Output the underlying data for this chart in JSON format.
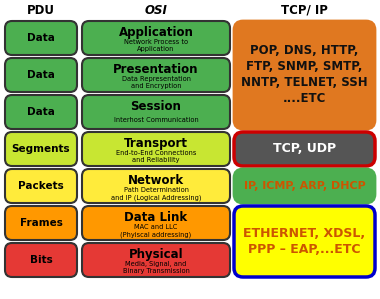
{
  "title_pdu": "PDU",
  "title_osi": "OSI",
  "title_tcp": "TCP/ IP",
  "layers": [
    {
      "pdu": "Data",
      "osi_name": "Application",
      "osi_sub": "Network Process to\nApplication",
      "pdu_color": "#4caf50",
      "osi_color": "#4caf50"
    },
    {
      "pdu": "Data",
      "osi_name": "Presentation",
      "osi_sub": "Data Representation\nand Encryption",
      "pdu_color": "#4caf50",
      "osi_color": "#4caf50"
    },
    {
      "pdu": "Data",
      "osi_name": "Session",
      "osi_sub": "Interhost Communication",
      "pdu_color": "#4caf50",
      "osi_color": "#4caf50"
    },
    {
      "pdu": "Segments",
      "osi_name": "Transport",
      "osi_sub": "End-to-End Connections\nand Reliability",
      "pdu_color": "#c8e632",
      "osi_color": "#c8e632"
    },
    {
      "pdu": "Packets",
      "osi_name": "Network",
      "osi_sub": "Path Determination\nand IP (Logical Addressing)",
      "pdu_color": "#ffeb3b",
      "osi_color": "#ffeb3b"
    },
    {
      "pdu": "Frames",
      "osi_name": "Data Link",
      "osi_sub": "MAC and LLC\n(Phyiscal addressing)",
      "pdu_color": "#ff9800",
      "osi_color": "#ff9800"
    },
    {
      "pdu": "Bits",
      "osi_name": "Physical",
      "osi_sub": "Media, Signal, and\nBinary Transmission",
      "pdu_color": "#e53935",
      "osi_color": "#e53935"
    }
  ],
  "tcp_groups": [
    {
      "text": "POP, DNS, HTTP,\nFTP, SNMP, SMTP,\nNNTP, TELNET, SSH\n....ETC",
      "bg_color": "#e07820",
      "text_color": "#111111",
      "border_color": "#e07820",
      "border_lw": 2.0,
      "rows": [
        0,
        1,
        2
      ],
      "fontsize": 8.5
    },
    {
      "text": "TCP, UDP",
      "bg_color": "#555555",
      "text_color": "#ffffff",
      "border_color": "#cc0000",
      "border_lw": 2.5,
      "rows": [
        3
      ],
      "fontsize": 9.0
    },
    {
      "text": "IP, ICMP, ARP, DHCP",
      "bg_color": "#4caf50",
      "text_color": "#cc5500",
      "border_color": "#4caf50",
      "border_lw": 2.0,
      "rows": [
        4
      ],
      "fontsize": 8.0
    },
    {
      "text": "ETHERNET, XDSL,\nPPP – EAP,...ETC",
      "bg_color": "#ffff00",
      "text_color": "#cc5500",
      "border_color": "#0000cc",
      "border_lw": 2.5,
      "rows": [
        5,
        6
      ],
      "fontsize": 9.0
    }
  ],
  "bg_color": "#ffffff"
}
